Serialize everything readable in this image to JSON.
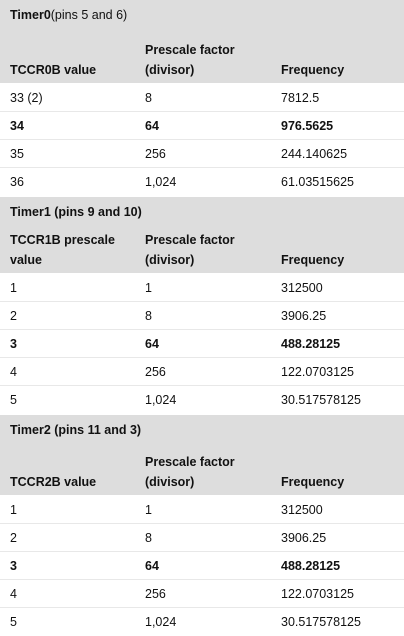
{
  "sections": [
    {
      "title_bold": "Timer0",
      "title_rest": " (pins 5 and 6)",
      "headers": [
        "TCCR0B value",
        "Prescale factor (divisor)",
        "Frequency"
      ],
      "rows": [
        [
          "33 (2)",
          "8",
          "7812.5"
        ],
        [
          "34",
          "64",
          "976.5625"
        ],
        [
          "35",
          "256",
          "244.140625"
        ],
        [
          "36",
          "1,024",
          "61.03515625"
        ]
      ],
      "bold_row": 1
    },
    {
      "title_bold": "Timer1 (pins 9 and 10)",
      "title_rest": "",
      "headers": [
        "TCCR1B prescale value",
        "Prescale factor (divisor)",
        "Frequency"
      ],
      "rows": [
        [
          "1",
          "1",
          "312500"
        ],
        [
          "2",
          "8",
          "3906.25"
        ],
        [
          "3",
          "64",
          "488.28125"
        ],
        [
          "4",
          "256",
          "122.0703125"
        ],
        [
          "5",
          "1,024",
          "30.517578125"
        ]
      ],
      "bold_row": 2
    },
    {
      "title_bold": "Timer2 (pins 11 and 3)",
      "title_rest": "",
      "headers": [
        "TCCR2B value",
        "Prescale factor (divisor)",
        "Frequency"
      ],
      "rows": [
        [
          "1",
          "1",
          "312500"
        ],
        [
          "2",
          "8",
          "3906.25"
        ],
        [
          "3",
          "64",
          "488.28125"
        ],
        [
          "4",
          "256",
          "122.0703125"
        ],
        [
          "5",
          "1,024",
          "30.517578125"
        ]
      ],
      "bold_row": 2
    }
  ]
}
